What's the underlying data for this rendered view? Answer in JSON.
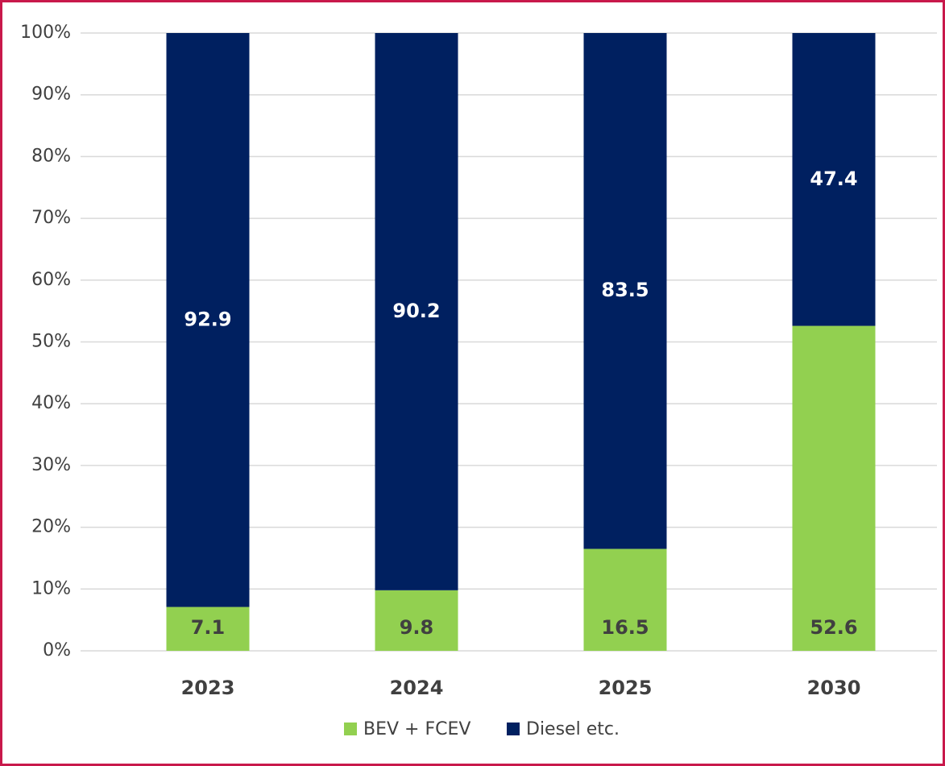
{
  "chart_data": {
    "type": "stacked_bar",
    "categories": [
      "2023",
      "2024",
      "2025",
      "2030"
    ],
    "series": [
      {
        "name": "BEV + FCEV",
        "color": "#92d050",
        "values": [
          7.1,
          9.8,
          16.5,
          52.6
        ]
      },
      {
        "name": "Diesel etc.",
        "color": "#002060",
        "values": [
          92.9,
          90.2,
          83.5,
          47.4
        ]
      }
    ],
    "ylim": [
      0,
      100
    ],
    "yticks": [
      {
        "value": 0,
        "label": "0%"
      },
      {
        "value": 10,
        "label": "10%"
      },
      {
        "value": 20,
        "label": "20%"
      },
      {
        "value": 30,
        "label": "30%"
      },
      {
        "value": 40,
        "label": "40%"
      },
      {
        "value": 50,
        "label": "50%"
      },
      {
        "value": 60,
        "label": "60%"
      },
      {
        "value": 70,
        "label": "70%"
      },
      {
        "value": 80,
        "label": "80%"
      },
      {
        "value": 90,
        "label": "90%"
      },
      {
        "value": 100,
        "label": "100%"
      }
    ],
    "grid": true,
    "legend": "bottom"
  }
}
